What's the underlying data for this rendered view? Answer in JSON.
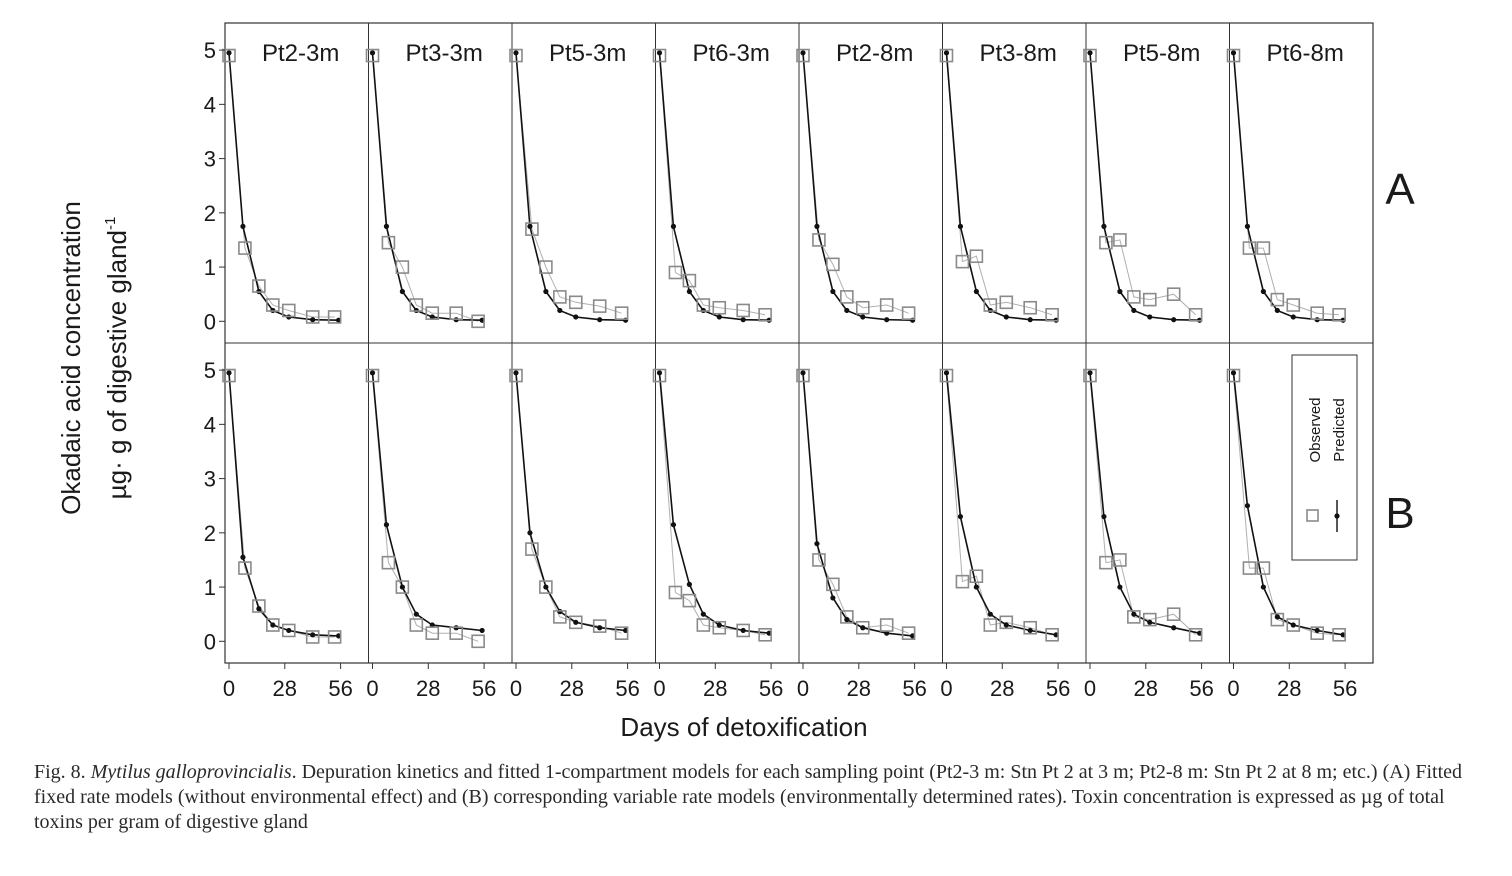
{
  "chart_data": {
    "type": "line",
    "panel_titles": [
      "Pt2-3m",
      "Pt3-3m",
      "Pt5-3m",
      "Pt6-3m",
      "Pt2-8m",
      "Pt3-8m",
      "Pt5-8m",
      "Pt6-8m"
    ],
    "rows": [
      "A",
      "B"
    ],
    "xlabel": "Days of detoxification",
    "ylabel_line1": "Okadaic acid concentration",
    "ylabel_line2": "µg· g of digestive gland",
    "ylabel_sup": "-1",
    "xticks": [
      "0",
      "28",
      "56"
    ],
    "yticks": [
      "0",
      "1",
      "2",
      "3",
      "4",
      "5"
    ],
    "xlim": [
      -2,
      70
    ],
    "ylim": [
      -0.4,
      5.5
    ],
    "legend": {
      "observed": "Observed",
      "predicted": "Predicted",
      "position": "inside right of bottom-right panel"
    },
    "observed_x": [
      0,
      8,
      15,
      22,
      30,
      42,
      53
    ],
    "predicted_x": [
      0,
      7,
      15,
      22,
      30,
      42,
      55
    ],
    "panels": {
      "A": [
        {
          "observed": [
            4.9,
            1.35,
            0.65,
            0.3,
            0.2,
            0.08,
            0.08
          ],
          "predicted": [
            4.95,
            1.75,
            0.55,
            0.2,
            0.08,
            0.03,
            0.02
          ]
        },
        {
          "observed": [
            4.9,
            1.45,
            1.0,
            0.3,
            0.15,
            0.15,
            0.0
          ],
          "predicted": [
            4.95,
            1.75,
            0.55,
            0.2,
            0.08,
            0.03,
            0.02
          ]
        },
        {
          "observed": [
            4.9,
            1.7,
            1.0,
            0.45,
            0.35,
            0.28,
            0.15
          ],
          "predicted": [
            4.95,
            1.75,
            0.55,
            0.2,
            0.08,
            0.03,
            0.02
          ]
        },
        {
          "observed": [
            4.9,
            0.9,
            0.75,
            0.3,
            0.25,
            0.2,
            0.12
          ],
          "predicted": [
            4.95,
            1.75,
            0.55,
            0.2,
            0.08,
            0.03,
            0.02
          ]
        },
        {
          "observed": [
            4.9,
            1.5,
            1.05,
            0.45,
            0.25,
            0.3,
            0.15
          ],
          "predicted": [
            4.95,
            1.75,
            0.55,
            0.2,
            0.08,
            0.03,
            0.02
          ]
        },
        {
          "observed": [
            4.9,
            1.1,
            1.2,
            0.3,
            0.35,
            0.25,
            0.12
          ],
          "predicted": [
            4.95,
            1.75,
            0.55,
            0.2,
            0.08,
            0.03,
            0.02
          ]
        },
        {
          "observed": [
            4.9,
            1.45,
            1.5,
            0.45,
            0.4,
            0.5,
            0.12
          ],
          "predicted": [
            4.95,
            1.75,
            0.55,
            0.2,
            0.08,
            0.03,
            0.02
          ]
        },
        {
          "observed": [
            4.9,
            1.35,
            1.35,
            0.4,
            0.3,
            0.15,
            0.12
          ],
          "predicted": [
            4.95,
            1.75,
            0.55,
            0.2,
            0.08,
            0.03,
            0.02
          ]
        }
      ],
      "B": [
        {
          "observed": [
            4.9,
            1.35,
            0.65,
            0.3,
            0.2,
            0.08,
            0.08
          ],
          "predicted": [
            4.95,
            1.55,
            0.6,
            0.3,
            0.2,
            0.12,
            0.1
          ]
        },
        {
          "observed": [
            4.9,
            1.45,
            1.0,
            0.3,
            0.15,
            0.15,
            0.0
          ],
          "predicted": [
            4.95,
            2.15,
            1.0,
            0.5,
            0.3,
            0.25,
            0.2
          ]
        },
        {
          "observed": [
            4.9,
            1.7,
            1.0,
            0.45,
            0.35,
            0.28,
            0.15
          ],
          "predicted": [
            4.95,
            2.0,
            1.0,
            0.55,
            0.35,
            0.25,
            0.2
          ]
        },
        {
          "observed": [
            4.9,
            0.9,
            0.75,
            0.3,
            0.25,
            0.2,
            0.12
          ],
          "predicted": [
            4.95,
            2.15,
            1.05,
            0.5,
            0.3,
            0.2,
            0.15
          ]
        },
        {
          "observed": [
            4.9,
            1.5,
            1.05,
            0.45,
            0.25,
            0.3,
            0.15
          ],
          "predicted": [
            4.95,
            1.8,
            0.8,
            0.4,
            0.25,
            0.15,
            0.1
          ]
        },
        {
          "observed": [
            4.9,
            1.1,
            1.2,
            0.3,
            0.35,
            0.25,
            0.12
          ],
          "predicted": [
            4.95,
            2.3,
            1.0,
            0.5,
            0.3,
            0.2,
            0.12
          ]
        },
        {
          "observed": [
            4.9,
            1.45,
            1.5,
            0.45,
            0.4,
            0.5,
            0.12
          ],
          "predicted": [
            4.95,
            2.3,
            1.0,
            0.5,
            0.35,
            0.25,
            0.15
          ]
        },
        {
          "observed": [
            4.9,
            1.35,
            1.35,
            0.4,
            0.3,
            0.15,
            0.12
          ],
          "predicted": [
            4.95,
            2.5,
            1.0,
            0.45,
            0.3,
            0.2,
            0.12
          ]
        }
      ]
    }
  },
  "caption": {
    "fig_label": "Fig. 8. ",
    "species": "Mytilus galloprovincialis",
    "text": ". Depuration kinetics and fitted 1-compartment models for each sampling point (Pt2-3 m: Stn Pt 2 at 3 m; Pt2-8 m: Stn Pt 2 at 8 m; etc.) (A) Fitted fixed rate models (without environmental effect) and (B) corresponding variable rate models (environmentally determined rates). Toxin concentration is expressed as µg of total toxins per gram of digestive gland"
  },
  "colors": {
    "observed": "#8a8a8a",
    "predicted": "#111111",
    "axis": "#333333"
  }
}
